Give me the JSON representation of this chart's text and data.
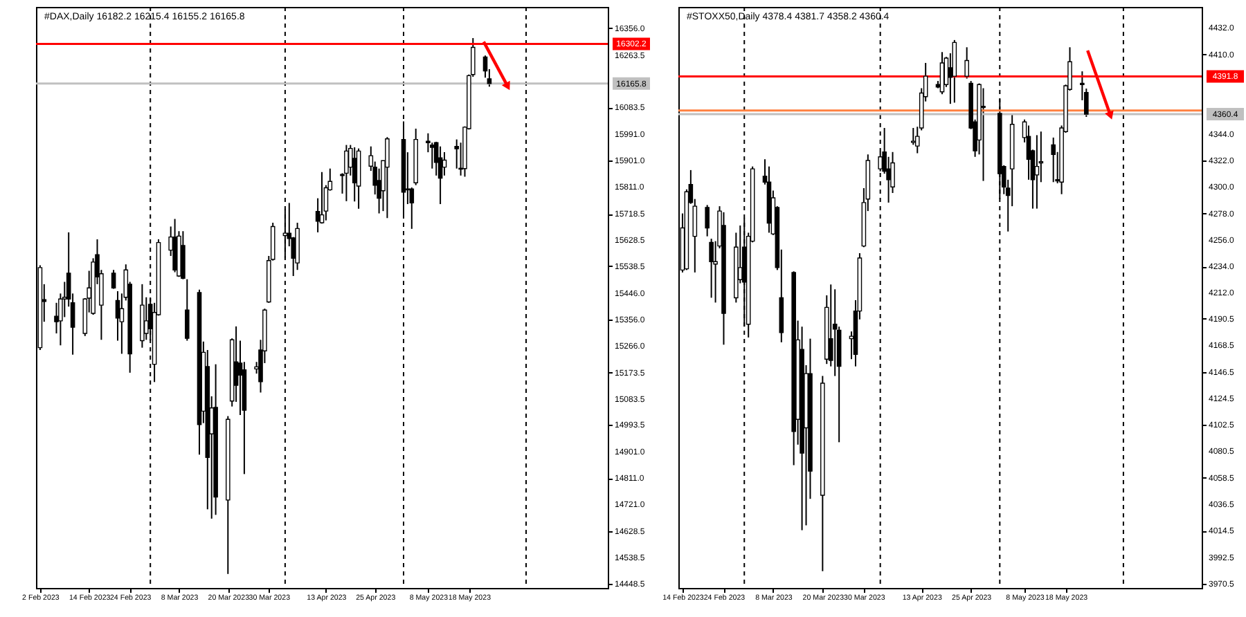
{
  "chart_data": [
    {
      "type": "candlestick",
      "title": "#DAX,Daily  16182.2 16215.4 16155.2 16165.8",
      "x": [
        "2023-02-02",
        "2023-02-03",
        "2023-02-06",
        "2023-02-07",
        "2023-02-08",
        "2023-02-09",
        "2023-02-10",
        "2023-02-13",
        "2023-02-14",
        "2023-02-15",
        "2023-02-16",
        "2023-02-17",
        "2023-02-20",
        "2023-02-21",
        "2023-02-22",
        "2023-02-23",
        "2023-02-24",
        "2023-02-27",
        "2023-02-28",
        "2023-03-01",
        "2023-03-02",
        "2023-03-03",
        "2023-03-06",
        "2023-03-07",
        "2023-03-08",
        "2023-03-09",
        "2023-03-10",
        "2023-03-13",
        "2023-03-14",
        "2023-03-15",
        "2023-03-16",
        "2023-03-17",
        "2023-03-20",
        "2023-03-21",
        "2023-03-22",
        "2023-03-23",
        "2023-03-24",
        "2023-03-27",
        "2023-03-28",
        "2023-03-29",
        "2023-03-30",
        "2023-03-31",
        "2023-04-03",
        "2023-04-04",
        "2023-04-05",
        "2023-04-06",
        "2023-04-11",
        "2023-04-12",
        "2023-04-13",
        "2023-04-14",
        "2023-04-17",
        "2023-04-18",
        "2023-04-19",
        "2023-04-20",
        "2023-04-21",
        "2023-04-24",
        "2023-04-25",
        "2023-04-26",
        "2023-04-27",
        "2023-04-28",
        "2023-05-02",
        "2023-05-03",
        "2023-05-04",
        "2023-05-05",
        "2023-05-08",
        "2023-05-09",
        "2023-05-10",
        "2023-05-11",
        "2023-05-12",
        "2023-05-15",
        "2023-05-16",
        "2023-05-17",
        "2023-05-18",
        "2023-05-19",
        "2023-05-22",
        "2023-05-23"
      ],
      "xlim": [
        "2023-02-01",
        "2023-06-21"
      ],
      "ohlc": [
        [
          15259,
          15542,
          15251,
          15534
        ],
        [
          15424,
          15477,
          15348,
          15418
        ],
        [
          15367,
          15413,
          15308,
          15348
        ],
        [
          15351,
          15445,
          15267,
          15426
        ],
        [
          15426,
          15485,
          15364,
          15432
        ],
        [
          15515,
          15655,
          15400,
          15426
        ],
        [
          15413,
          15445,
          15235,
          15329
        ],
        [
          15308,
          15429,
          15299,
          15426
        ],
        [
          15429,
          15523,
          15380,
          15464
        ],
        [
          15377,
          15566,
          15372,
          15553
        ],
        [
          15578,
          15631,
          15477,
          15502
        ],
        [
          15405,
          15526,
          15286,
          15513
        ],
        [
          15515,
          15526,
          15461,
          15464
        ],
        [
          15421,
          15453,
          15283,
          15361
        ],
        [
          15348,
          15445,
          15238,
          15393
        ],
        [
          15432,
          15545,
          15421,
          15526
        ],
        [
          15477,
          15485,
          15173,
          15238
        ],
        [
          15283,
          15477,
          15259,
          15405
        ],
        [
          15308,
          15432,
          15286,
          15351
        ],
        [
          15408,
          15429,
          15283,
          15324
        ],
        [
          15202,
          15413,
          15141,
          15380
        ],
        [
          15372,
          15631,
          15369,
          15620
        ],
        [
          15594,
          15675,
          15574,
          15639
        ],
        [
          15639,
          15701,
          15518,
          15526
        ],
        [
          15505,
          15659,
          15502,
          15642
        ],
        [
          15610,
          15659,
          15494,
          15497
        ],
        [
          15388,
          15494,
          15283,
          15291
        ],
        [
          15448,
          15458,
          14892,
          14995
        ],
        [
          15041,
          15280,
          15000,
          15243
        ],
        [
          15194,
          15251,
          14704,
          14882
        ],
        [
          14963,
          15092,
          14672,
          15052
        ],
        [
          15054,
          15202,
          14685,
          14746
        ],
        [
          14736,
          15024,
          14482,
          15013
        ],
        [
          15076,
          15291,
          15057,
          15286
        ],
        [
          15210,
          15332,
          15073,
          15130
        ],
        [
          15206,
          15283,
          15028,
          15165
        ],
        [
          15183,
          15210,
          14825,
          15044
        ],
        [
          15186,
          15210,
          15170,
          15193
        ],
        [
          15251,
          15286,
          15105,
          15142
        ],
        [
          15248,
          15393,
          15206,
          15388
        ],
        [
          15416,
          15574,
          15413,
          15558
        ],
        [
          15562,
          15688,
          15558,
          15675
        ],
        [
          15644,
          15736,
          15566,
          15652
        ],
        [
          15652,
          15756,
          15607,
          15634
        ],
        [
          15636,
          15639,
          15505,
          15566
        ],
        [
          15550,
          15688,
          15526,
          15668
        ],
        [
          15727,
          15772,
          15655,
          15693
        ],
        [
          15688,
          15862,
          15685,
          15715
        ],
        [
          15728,
          15817,
          15696,
          15808
        ],
        [
          15801,
          15874,
          15798,
          15830
        ],
        [
          15854,
          15858,
          15788,
          15850
        ],
        [
          15858,
          15955,
          15762,
          15934
        ],
        [
          15879,
          15955,
          15850,
          15943
        ],
        [
          15909,
          15947,
          15761,
          15825
        ],
        [
          15814,
          15943,
          15736,
          15934
        ],
        [
          15882,
          15950,
          15866,
          15918
        ],
        [
          15879,
          15898,
          15785,
          15817
        ],
        [
          15833,
          15874,
          15720,
          15772
        ],
        [
          15798,
          15901,
          15728,
          15901
        ],
        [
          15879,
          15982,
          15704,
          15976
        ],
        [
          15974,
          16036,
          15712,
          15793
        ],
        [
          15804,
          15930,
          15752,
          15801
        ],
        [
          15804,
          15809,
          15667,
          15756
        ],
        [
          15825,
          16011,
          15817,
          15974
        ],
        [
          15968,
          15995,
          15930,
          15963
        ],
        [
          15955,
          15963,
          15874,
          15947
        ],
        [
          15963,
          15966,
          15850,
          15895
        ],
        [
          15911,
          15950,
          15752,
          15841
        ],
        [
          15879,
          15930,
          15850,
          15903
        ],
        [
          15950,
          15974,
          15874,
          15942
        ],
        [
          15875,
          15963,
          15850,
          15872
        ],
        [
          15874,
          16019,
          15846,
          16016
        ],
        [
          16011,
          16197,
          16008,
          16193
        ],
        [
          16197,
          16322,
          16189,
          16290
        ],
        [
          16257,
          16262,
          16186,
          16209
        ],
        [
          16182.2,
          16215.4,
          16155.2,
          16165.8
        ]
      ],
      "xticks": [
        {
          "value": "2023-02-02",
          "label": "2 Feb 2023"
        },
        {
          "value": "2023-02-14",
          "label": "14 Feb 2023"
        },
        {
          "value": "2023-02-24",
          "label": "24 Feb 2023"
        },
        {
          "value": "2023-03-08",
          "label": "8 Mar 2023"
        },
        {
          "value": "2023-03-20",
          "label": "20 Mar 2023"
        },
        {
          "value": "2023-03-30",
          "label": "30 Mar 2023"
        },
        {
          "value": "2023-04-13",
          "label": "13 Apr 2023"
        },
        {
          "value": "2023-04-25",
          "label": "25 Apr 2023"
        },
        {
          "value": "2023-05-08",
          "label": "8 May 2023"
        },
        {
          "value": "2023-05-18",
          "label": "18 May 2023"
        }
      ],
      "ylim": [
        14434,
        16429
      ],
      "yticks": [
        {
          "value": 16356,
          "label": "16356.0"
        },
        16263.5,
        16083.5,
        {
          "value": 15991,
          "label": "15991.0"
        },
        {
          "value": 15901,
          "label": "15901.0"
        },
        {
          "value": 15811,
          "label": "15811.0"
        },
        15718.5,
        15628.5,
        15538.5,
        {
          "value": 15446,
          "label": "15446.0"
        },
        {
          "value": 15356,
          "label": "15356.0"
        },
        {
          "value": 15266,
          "label": "15266.0"
        },
        15173.5,
        15083.5,
        14993.5,
        {
          "value": 14901,
          "label": "14901.0"
        },
        {
          "value": 14811,
          "label": "14811.0"
        },
        {
          "value": 14721,
          "label": "14721.0"
        },
        14628.5,
        14538.5,
        14448.5
      ],
      "ref_lines": [
        {
          "axis": "x",
          "value": "2023-03-01",
          "color": "#000000",
          "line_style": "dashed"
        },
        {
          "axis": "x",
          "value": "2023-04-03",
          "color": "#000000",
          "line_style": "dashed"
        },
        {
          "axis": "x",
          "value": "2023-05-02",
          "color": "#000000",
          "line_style": "dashed"
        },
        {
          "axis": "x",
          "value": "2023-06-01",
          "color": "#000000",
          "line_style": "dashed"
        },
        {
          "axis": "y",
          "value": 16302.2,
          "label": "16302.2",
          "color": "#ff0000"
        },
        {
          "axis": "y",
          "value": 16165.8,
          "label": "16165.8",
          "color": "#c0c0c0"
        }
      ]
    },
    {
      "type": "candlestick",
      "title": "#STOXX50,Daily  4378.4 4381.7 4358.2 4360.4",
      "x": [
        "2023-02-14",
        "2023-02-15",
        "2023-02-16",
        "2023-02-17",
        "2023-02-20",
        "2023-02-21",
        "2023-02-22",
        "2023-02-23",
        "2023-02-24",
        "2023-02-27",
        "2023-02-28",
        "2023-03-01",
        "2023-03-02",
        "2023-03-03",
        "2023-03-06",
        "2023-03-07",
        "2023-03-08",
        "2023-03-09",
        "2023-03-10",
        "2023-03-13",
        "2023-03-14",
        "2023-03-15",
        "2023-03-16",
        "2023-03-17",
        "2023-03-20",
        "2023-03-21",
        "2023-03-22",
        "2023-03-23",
        "2023-03-24",
        "2023-03-27",
        "2023-03-28",
        "2023-03-29",
        "2023-03-30",
        "2023-03-31",
        "2023-04-03",
        "2023-04-04",
        "2023-04-05",
        "2023-04-06",
        "2023-04-11",
        "2023-04-12",
        "2023-04-13",
        "2023-04-14",
        "2023-04-17",
        "2023-04-18",
        "2023-04-19",
        "2023-04-20",
        "2023-04-21",
        "2023-04-24",
        "2023-04-25",
        "2023-04-26",
        "2023-04-27",
        "2023-04-28",
        "2023-05-02",
        "2023-05-03",
        "2023-05-04",
        "2023-05-05",
        "2023-05-08",
        "2023-05-09",
        "2023-05-10",
        "2023-05-11",
        "2023-05-12",
        "2023-05-15",
        "2023-05-16",
        "2023-05-17",
        "2023-05-18",
        "2023-05-19",
        "2023-05-22",
        "2023-05-23"
      ],
      "xlim": [
        "2023-02-13",
        "2023-06-20"
      ],
      "ohlc": [
        [
          4231,
          4278,
          4229,
          4266
        ],
        [
          4232,
          4298,
          4231,
          4296
        ],
        [
          4302,
          4314,
          4286,
          4287
        ],
        [
          4259,
          4290,
          4229,
          4284
        ],
        [
          4283,
          4285,
          4259,
          4266
        ],
        [
          4254,
          4257,
          4208,
          4238
        ],
        [
          4236,
          4255,
          4204,
          4238
        ],
        [
          4251,
          4284,
          4249,
          4280
        ],
        [
          4268,
          4279,
          4169,
          4195
        ],
        [
          4208,
          4262,
          4204,
          4250
        ],
        [
          4223,
          4268,
          4220,
          4233
        ],
        [
          4250,
          4274,
          4184,
          4221
        ],
        [
          4186,
          4262,
          4175,
          4259
        ],
        [
          4255,
          4317,
          4254,
          4315
        ],
        [
          4309,
          4323,
          4302,
          4304
        ],
        [
          4304,
          4317,
          4262,
          4270
        ],
        [
          4261,
          4297,
          4260,
          4291
        ],
        [
          4283,
          4284,
          4231,
          4233
        ],
        [
          4208,
          4248,
          4171,
          4179
        ],
        [
          4229,
          4230,
          4069,
          4097
        ],
        [
          4107,
          4189,
          4086,
          4173
        ],
        [
          4165,
          4184,
          4015,
          4079
        ],
        [
          4100,
          4152,
          4019,
          4145
        ],
        [
          4145,
          4174,
          4041,
          4064
        ],
        [
          4044,
          4143,
          3981,
          4137
        ],
        [
          4157,
          4210,
          4153,
          4200
        ],
        [
          4174,
          4219,
          4151,
          4156
        ],
        [
          4186,
          4215,
          4143,
          4182
        ],
        [
          4181,
          4184,
          4088,
          4151
        ],
        [
          4174,
          4180,
          4157,
          4176
        ],
        [
          4197,
          4206,
          4151,
          4161
        ],
        [
          4197,
          4245,
          4190,
          4241
        ],
        [
          4251,
          4299,
          4250,
          4287
        ],
        [
          4290,
          4327,
          4280,
          4322
        ],
        [
          4315,
          4329,
          4313,
          4325
        ],
        [
          4329,
          4349,
          4311,
          4313
        ],
        [
          4315,
          4325,
          4287,
          4306
        ],
        [
          4300,
          4329,
          4295,
          4320
        ],
        [
          4337,
          4349,
          4335,
          4338
        ],
        [
          4334,
          4350,
          4328,
          4342
        ],
        [
          4349,
          4382,
          4347,
          4378
        ],
        [
          4375,
          4403,
          4371,
          4392
        ],
        [
          4385,
          4388,
          4382,
          4383
        ],
        [
          4379,
          4412,
          4377,
          4403
        ],
        [
          4385,
          4408,
          4383,
          4407
        ],
        [
          4399,
          4411,
          4369,
          4391
        ],
        [
          4392,
          4422,
          4370,
          4420
        ],
        [
          4392,
          4416,
          4390,
          4405
        ],
        [
          4386,
          4388,
          4348,
          4349
        ],
        [
          4354,
          4356,
          4325,
          4330
        ],
        [
          4339,
          4386,
          4327,
          4385
        ],
        [
          4367,
          4382,
          4305,
          4366
        ],
        [
          4361,
          4373,
          4290,
          4311
        ],
        [
          4317,
          4318,
          4294,
          4300
        ],
        [
          4299,
          4306,
          4263,
          4293
        ],
        [
          4315,
          4360,
          4284,
          4352
        ],
        [
          4341,
          4356,
          4337,
          4354
        ],
        [
          4342,
          4351,
          4306,
          4323
        ],
        [
          4330,
          4331,
          4282,
          4306
        ],
        [
          4310,
          4343,
          4282,
          4317
        ],
        [
          4320,
          4346,
          4304,
          4321
        ],
        [
          4335,
          4341,
          4304,
          4327
        ],
        [
          4306,
          4329,
          4303,
          4305
        ],
        [
          4304,
          4351,
          4294,
          4349
        ],
        [
          4346,
          4385,
          4345,
          4384
        ],
        [
          4381,
          4416,
          4380,
          4404
        ],
        [
          4386,
          4396,
          4372,
          4385
        ],
        [
          4378.4,
          4381.7,
          4358.2,
          4360.4
        ]
      ],
      "xticks": [
        {
          "value": "2023-02-14",
          "label": "14 Feb 2023"
        },
        {
          "value": "2023-02-24",
          "label": "24 Feb 2023"
        },
        {
          "value": "2023-03-08",
          "label": "8 Mar 2023"
        },
        {
          "value": "2023-03-20",
          "label": "20 Mar 2023"
        },
        {
          "value": "2023-03-30",
          "label": "30 Mar 2023"
        },
        {
          "value": "2023-04-13",
          "label": "13 Apr 2023"
        },
        {
          "value": "2023-04-25",
          "label": "25 Apr 2023"
        },
        {
          "value": "2023-05-08",
          "label": "8 May 2023"
        },
        {
          "value": "2023-05-18",
          "label": "18 May 2023"
        }
      ],
      "ylim": [
        3967,
        4449.5
      ],
      "yticks": [
        {
          "value": 4432,
          "label": "4432.0"
        },
        {
          "value": 4410,
          "label": "4410.0"
        },
        {
          "value": 4344,
          "label": "4344.0"
        },
        {
          "value": 4322,
          "label": "4322.0"
        },
        {
          "value": 4300,
          "label": "4300.0"
        },
        {
          "value": 4278,
          "label": "4278.0"
        },
        {
          "value": 4256,
          "label": "4256.0"
        },
        {
          "value": 4234,
          "label": "4234.0"
        },
        {
          "value": 4212,
          "label": "4212.0"
        },
        4190.5,
        4168.5,
        4146.5,
        4124.5,
        4102.5,
        4080.5,
        4058.5,
        4036.5,
        4014.5,
        3992.5,
        3970.5
      ],
      "ref_lines": [
        {
          "axis": "x",
          "value": "2023-03-01",
          "color": "#000000",
          "line_style": "dashed"
        },
        {
          "axis": "x",
          "value": "2023-04-03",
          "color": "#000000",
          "line_style": "dashed"
        },
        {
          "axis": "x",
          "value": "2023-05-02",
          "color": "#000000",
          "line_style": "dashed"
        },
        {
          "axis": "x",
          "value": "2023-06-01",
          "color": "#000000",
          "line_style": "dashed"
        },
        {
          "axis": "y",
          "value": 4391.8,
          "label": "4391.8",
          "color": "#ff0000"
        },
        {
          "axis": "y",
          "value": 4363.5,
          "color": "#ff8040"
        },
        {
          "axis": "y",
          "value": 4360.4,
          "label": "4360.4",
          "color": "#c0c0c0"
        }
      ]
    }
  ]
}
